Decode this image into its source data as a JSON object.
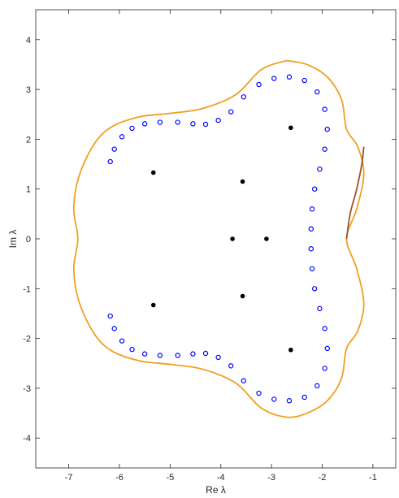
{
  "chart_data": {
    "type": "scatter",
    "title": "",
    "xlabel": "Re λ",
    "ylabel": "Im λ",
    "xlim": [
      -7.65,
      -0.55
    ],
    "ylim": [
      -4.6,
      4.6
    ],
    "x_ticks": [
      -7,
      -6,
      -5,
      -4,
      -3,
      -2,
      -1
    ],
    "y_ticks": [
      -4,
      -3,
      -2,
      -1,
      0,
      1,
      2,
      3,
      4
    ],
    "x_tick_labels": [
      "-7",
      "-6",
      "-5",
      "-4",
      "-3",
      "-2",
      "-1"
    ],
    "y_tick_labels": [
      "-4",
      "-3",
      "-2",
      "-1",
      "0",
      "1",
      "2",
      "3",
      "4"
    ],
    "grid": false,
    "box": true,
    "colors": {
      "outer_curve": "#f0a020",
      "outer_curve_segment": "#a0522d",
      "circles": "#0000ff",
      "points": "#000000",
      "axes": "#262626"
    },
    "series": [
      {
        "marker": "line",
        "color": "#f0a020",
        "points": [
          [
            -2.7,
            3.58
          ],
          [
            -2.3,
            3.5
          ],
          [
            -1.9,
            3.25
          ],
          [
            -1.62,
            2.8
          ],
          [
            -1.52,
            2.2
          ],
          [
            -1.3,
            1.85
          ],
          [
            -1.18,
            1.3
          ],
          [
            -1.32,
            0.6
          ],
          [
            -1.52,
            0.0
          ],
          [
            -1.32,
            -0.6
          ],
          [
            -1.18,
            -1.3
          ],
          [
            -1.3,
            -1.85
          ],
          [
            -1.52,
            -2.2
          ],
          [
            -1.62,
            -2.8
          ],
          [
            -1.9,
            -3.25
          ],
          [
            -2.3,
            -3.5
          ],
          [
            -2.7,
            -3.58
          ],
          [
            -3.2,
            -3.4
          ],
          [
            -3.7,
            -2.9
          ],
          [
            -4.35,
            -2.62
          ],
          [
            -5.0,
            -2.52
          ],
          [
            -5.6,
            -2.45
          ],
          [
            -6.15,
            -2.25
          ],
          [
            -6.5,
            -1.9
          ],
          [
            -6.8,
            -1.25
          ],
          [
            -6.9,
            -0.6
          ],
          [
            -6.82,
            0.0
          ],
          [
            -6.9,
            0.6
          ],
          [
            -6.8,
            1.25
          ],
          [
            -6.5,
            1.9
          ],
          [
            -6.15,
            2.25
          ],
          [
            -5.6,
            2.45
          ],
          [
            -5.0,
            2.52
          ],
          [
            -4.35,
            2.62
          ],
          [
            -3.7,
            2.9
          ],
          [
            -3.2,
            3.4
          ],
          [
            -2.7,
            3.58
          ]
        ]
      },
      {
        "marker": "line",
        "color": "#a0522d",
        "points": [
          [
            -1.18,
            1.85
          ],
          [
            -1.22,
            1.5
          ],
          [
            -1.32,
            1.0
          ],
          [
            -1.45,
            0.5
          ],
          [
            -1.52,
            0.0
          ]
        ]
      },
      {
        "marker": "circle",
        "color": "#0000ff",
        "points": [
          [
            -6.18,
            -1.55
          ],
          [
            -6.1,
            -1.8
          ],
          [
            -5.95,
            -2.05
          ],
          [
            -5.75,
            -2.22
          ],
          [
            -5.5,
            -2.31
          ],
          [
            -5.2,
            -2.34
          ],
          [
            -4.85,
            -2.34
          ],
          [
            -4.55,
            -2.31
          ],
          [
            -4.3,
            -2.3
          ],
          [
            -4.05,
            -2.38
          ],
          [
            -3.8,
            -2.55
          ],
          [
            -3.55,
            -2.85
          ],
          [
            -3.25,
            -3.1
          ],
          [
            -2.95,
            -3.22
          ],
          [
            -2.65,
            -3.25
          ],
          [
            -2.35,
            -3.18
          ],
          [
            -2.1,
            -2.95
          ],
          [
            -1.95,
            -2.6
          ],
          [
            -1.9,
            -2.2
          ],
          [
            -1.95,
            -1.8
          ],
          [
            -2.05,
            -1.4
          ],
          [
            -2.15,
            -1.0
          ],
          [
            -2.2,
            -0.6
          ],
          [
            -2.22,
            -0.2
          ],
          [
            -2.22,
            0.2
          ],
          [
            -2.2,
            0.6
          ],
          [
            -2.15,
            1.0
          ],
          [
            -2.05,
            1.4
          ],
          [
            -1.95,
            1.8
          ],
          [
            -1.9,
            2.2
          ],
          [
            -1.95,
            2.6
          ],
          [
            -2.1,
            2.95
          ],
          [
            -2.35,
            3.18
          ],
          [
            -2.65,
            3.25
          ],
          [
            -2.95,
            3.22
          ],
          [
            -3.25,
            3.1
          ],
          [
            -3.55,
            2.85
          ],
          [
            -3.8,
            2.55
          ],
          [
            -4.05,
            2.38
          ],
          [
            -4.3,
            2.3
          ],
          [
            -4.55,
            2.31
          ],
          [
            -4.85,
            2.34
          ],
          [
            -5.2,
            2.34
          ],
          [
            -5.5,
            2.31
          ],
          [
            -5.75,
            2.22
          ],
          [
            -5.95,
            2.05
          ],
          [
            -6.1,
            1.8
          ],
          [
            -6.18,
            1.55
          ]
        ]
      },
      {
        "marker": "dot",
        "color": "#000000",
        "points": [
          [
            -2.62,
            2.23
          ],
          [
            -5.33,
            1.33
          ],
          [
            -3.57,
            1.15
          ],
          [
            -3.77,
            0.0
          ],
          [
            -3.1,
            0.0
          ],
          [
            -3.57,
            -1.15
          ],
          [
            -5.33,
            -1.33
          ],
          [
            -2.62,
            -2.23
          ]
        ]
      }
    ]
  }
}
